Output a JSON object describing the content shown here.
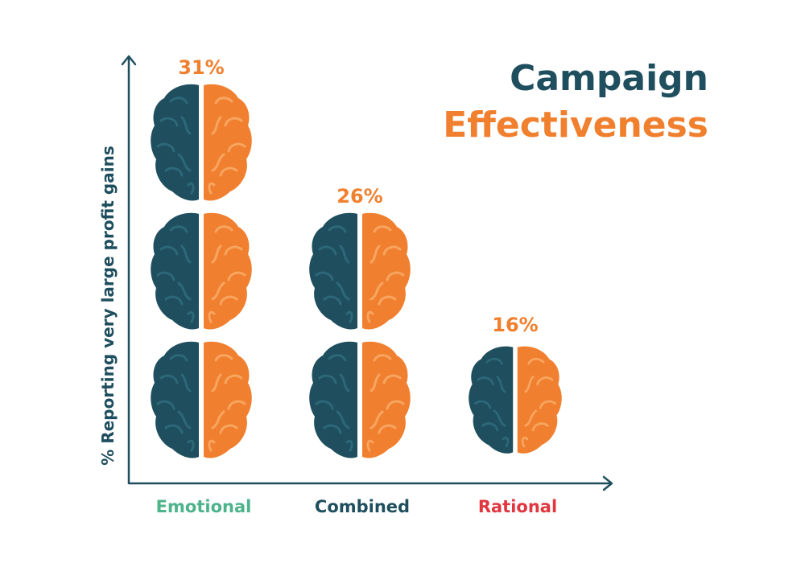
{
  "title": {
    "line1": "Campaign",
    "line2": "Effectiveness"
  },
  "colors": {
    "brain_left": "#1f4f5e",
    "brain_left_light": "#2d6878",
    "brain_right": "#f0802f",
    "brain_right_light": "#f7a560",
    "title_dark": "#1f4f5e",
    "title_orange": "#f07f2e",
    "value_label": "#f07f2e",
    "axis": "#1f4f5e",
    "emotional": "#4cb38a",
    "combined": "#1f4f5e",
    "rational": "#e0363f"
  },
  "chart_data": {
    "type": "bar",
    "title": "Campaign Effectiveness",
    "xlabel": "",
    "ylabel": "% Reporting very large profit gains",
    "categories": [
      "Emotional",
      "Combined",
      "Rational"
    ],
    "values": [
      31,
      26,
      16
    ],
    "value_labels": [
      "31%",
      "26%",
      "16%"
    ],
    "icon_counts": [
      3,
      2,
      1
    ],
    "icon": "brain-icon",
    "grid": false,
    "legend": "none"
  }
}
